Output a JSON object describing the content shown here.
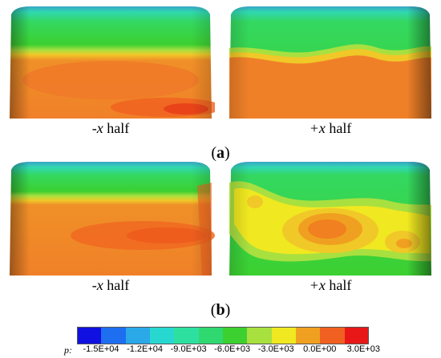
{
  "panels": {
    "a_left_caption_var": "-x",
    "a_left_caption_text": " half",
    "a_right_caption_var": "+x",
    "a_right_caption_text": " half",
    "b_left_caption_var": "-x",
    "b_left_caption_text": " half",
    "b_right_caption_var": "+x",
    "b_right_caption_text": " half"
  },
  "subfigures": {
    "a_open": "(",
    "a_letter": "a",
    "a_close": ")",
    "b_open": "(",
    "b_letter": "b",
    "b_close": ")"
  },
  "colorbar": {
    "variable_label": "p:",
    "tick_labels": [
      "-1.5E+04",
      "-1.2E+04",
      "-9.0E+03",
      "-6.0E+03",
      "-3.0E+03",
      "0.0E+00",
      "3.0E+03"
    ],
    "colors": [
      "#1010e0",
      "#1e6ef0",
      "#2aa8e8",
      "#28d8d0",
      "#2ee0a0",
      "#30d870",
      "#3cd030",
      "#a8e040",
      "#f0e820",
      "#f0a020",
      "#f06020",
      "#e81818"
    ]
  }
}
